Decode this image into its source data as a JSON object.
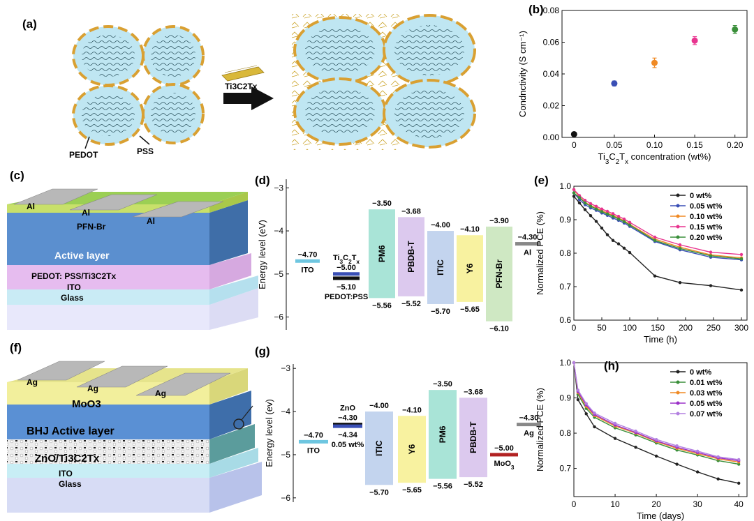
{
  "panel_labels": {
    "a": "(a)",
    "b": "(b)",
    "c": "(c)",
    "d": "(d)",
    "e": "(e)",
    "f": "(f)",
    "g": "(g)",
    "h": "(h)"
  },
  "panel_a": {
    "mxene_label": "Ti3C2Tx",
    "pedot_label": "PEDOT",
    "pss_label": "PSS"
  },
  "panel_c": {
    "layers": [
      "Al",
      "Al",
      "Al",
      "PFN-Br",
      "Active layer",
      "PEDOT: PSS/Ti3C2Tx",
      "ITO",
      "Glass"
    ]
  },
  "panel_f": {
    "layers": [
      "Ag",
      "Ag",
      "Ag",
      "MoO3",
      "BHJ Active layer",
      "ZnO/Ti3C2Tx",
      "ITO",
      "Glass"
    ]
  },
  "chart_data": [
    {
      "id": "b",
      "type": "scatter",
      "xlabel": "Ti3C2Tx concentration (wt%)",
      "ylabel": "Condnctivity (S cm⁻¹)",
      "xlim": [
        -0.015,
        0.215
      ],
      "ylim": [
        0,
        0.08
      ],
      "xticks": [
        "0",
        "0.05",
        "0.10",
        "0.15",
        "0.20"
      ],
      "xtick_values": [
        0,
        0.05,
        0.1,
        0.15,
        0.2
      ],
      "yticks": [
        "0.00",
        "0.02",
        "0.04",
        "0.06",
        "0.08"
      ],
      "ytick_values": [
        0,
        0.02,
        0.04,
        0.06,
        0.08
      ],
      "points": [
        {
          "x": 0,
          "y": 0.002,
          "err": 0.001,
          "color": "#111111"
        },
        {
          "x": 0.05,
          "y": 0.034,
          "err": 0.0015,
          "color": "#3a4fb5"
        },
        {
          "x": 0.1,
          "y": 0.047,
          "err": 0.003,
          "color": "#f08a24"
        },
        {
          "x": 0.15,
          "y": 0.061,
          "err": 0.0025,
          "color": "#e8348f"
        },
        {
          "x": 0.2,
          "y": 0.068,
          "err": 0.0025,
          "color": "#3a8f3a"
        }
      ]
    },
    {
      "id": "d",
      "type": "bar",
      "ylabel": "Energy level (eV)",
      "ylim": [
        -6.3,
        -2.8
      ],
      "yticks": [
        "-3",
        "-4",
        "-5",
        "-6"
      ],
      "ytick_values": [
        -3,
        -4,
        -5,
        -6
      ],
      "levels": [
        {
          "name": "ITO",
          "value": -4.7,
          "label": "−4.70",
          "color": "#6ec6e0"
        },
        {
          "name": "Ti3C2Tx",
          "value": -5.0,
          "label": "−5.00",
          "color": "#3a4fb5"
        },
        {
          "name": "PEDOT:PSS",
          "value": -5.1,
          "label": "−5.10",
          "color": "#111111"
        },
        {
          "name": "Al",
          "value": -4.3,
          "label": "−4.30",
          "color": "#888888"
        }
      ],
      "bands": [
        {
          "name": "PM6",
          "lumo": -3.5,
          "homo": -5.56,
          "lumo_label": "−3.50",
          "homo_label": "−5.56",
          "color": "#a9e4d7"
        },
        {
          "name": "PBDB-T",
          "lumo": -3.68,
          "homo": -5.52,
          "lumo_label": "−3.68",
          "homo_label": "−5.52",
          "color": "#dcc9ee"
        },
        {
          "name": "ITIC",
          "lumo": -4.0,
          "homo": -5.7,
          "lumo_label": "−4.00",
          "homo_label": "−5.70",
          "color": "#c3d4ee"
        },
        {
          "name": "Y6",
          "lumo": -4.1,
          "homo": -5.65,
          "lumo_label": "−4.10",
          "homo_label": "−5.65",
          "color": "#f8f2a0"
        },
        {
          "name": "PFN-Br",
          "lumo": -3.9,
          "homo": -6.1,
          "lumo_label": "−3.90",
          "homo_label": "−6.10",
          "color": "#cfe8c3"
        }
      ]
    },
    {
      "id": "e",
      "type": "line",
      "xlabel": "Time (h)",
      "ylabel": "Normalized PCE (%)",
      "xlim": [
        0,
        310
      ],
      "ylim": [
        0.6,
        1.0
      ],
      "xticks": [
        "0",
        "50",
        "100",
        "150",
        "200",
        "250",
        "300"
      ],
      "xtick_values": [
        0,
        50,
        100,
        150,
        200,
        250,
        300
      ],
      "yticks": [
        "0.6",
        "0.7",
        "0.8",
        "0.9",
        "1.0"
      ],
      "ytick_values": [
        0.6,
        0.7,
        0.8,
        0.9,
        1.0
      ],
      "x": [
        0,
        10,
        20,
        30,
        40,
        50,
        60,
        70,
        80,
        90,
        100,
        145,
        190,
        245,
        300
      ],
      "series": [
        {
          "name": "0 wt%",
          "color": "#222222",
          "values": [
            0.97,
            0.95,
            0.93,
            0.912,
            0.895,
            0.875,
            0.855,
            0.838,
            0.828,
            0.815,
            0.802,
            0.732,
            0.712,
            0.703,
            0.69
          ]
        },
        {
          "name": "0.05 wt%",
          "color": "#3a4fb5",
          "values": [
            0.98,
            0.96,
            0.945,
            0.935,
            0.928,
            0.92,
            0.913,
            0.905,
            0.898,
            0.89,
            0.88,
            0.835,
            0.81,
            0.788,
            0.78
          ]
        },
        {
          "name": "0.10 wt%",
          "color": "#f08a24",
          "values": [
            0.99,
            0.968,
            0.952,
            0.942,
            0.935,
            0.927,
            0.92,
            0.913,
            0.905,
            0.897,
            0.886,
            0.842,
            0.818,
            0.795,
            0.786
          ]
        },
        {
          "name": "0.15 wt%",
          "color": "#e8348f",
          "values": [
            0.99,
            0.972,
            0.958,
            0.948,
            0.94,
            0.932,
            0.925,
            0.918,
            0.91,
            0.902,
            0.892,
            0.848,
            0.825,
            0.803,
            0.796
          ]
        },
        {
          "name": "0.20 wt%",
          "color": "#3a8f3a",
          "values": [
            0.98,
            0.966,
            0.95,
            0.94,
            0.932,
            0.924,
            0.917,
            0.91,
            0.902,
            0.894,
            0.884,
            0.838,
            0.814,
            0.792,
            0.783
          ]
        }
      ]
    },
    {
      "id": "g",
      "type": "bar",
      "ylabel": "Energy level (ev)",
      "ylim": [
        -6.1,
        -2.9
      ],
      "yticks": [
        "-3",
        "-4",
        "-5",
        "-6"
      ],
      "ytick_values": [
        -3,
        -4,
        -5,
        -6
      ],
      "levels": [
        {
          "name": "ITO",
          "value": -4.7,
          "label": "−4.70",
          "color": "#6ec6e0"
        },
        {
          "name": "ZnO",
          "value": -4.3,
          "label": "−4.30",
          "color": "#111111"
        },
        {
          "name": "0.05 wt%",
          "value": -4.34,
          "label": "−4.34",
          "color": "#3a4fb5"
        },
        {
          "name": "MoO3",
          "value": -5.0,
          "label": "−5.00",
          "color": "#b22222"
        },
        {
          "name": "Ag",
          "value": -4.3,
          "label": "−4.30",
          "color": "#888888"
        }
      ],
      "bands": [
        {
          "name": "ITIC",
          "lumo": -4.0,
          "homo": -5.7,
          "lumo_label": "−4.00",
          "homo_label": "−5.70",
          "color": "#c3d4ee"
        },
        {
          "name": "Y6",
          "lumo": -4.1,
          "homo": -5.65,
          "lumo_label": "−4.10",
          "homo_label": "−5.65",
          "color": "#f8f2a0"
        },
        {
          "name": "PM6",
          "lumo": -3.5,
          "homo": -5.56,
          "lumo_label": "−3.50",
          "homo_label": "−5.56",
          "color": "#a9e4d7"
        },
        {
          "name": "PBDB-T",
          "lumo": -3.68,
          "homo": -5.52,
          "lumo_label": "−3.68",
          "homo_label": "−5.52",
          "color": "#dcc9ee"
        }
      ]
    },
    {
      "id": "h",
      "type": "line",
      "xlabel": "Time (days)",
      "ylabel": "Normalized PCE (%)",
      "xlim": [
        0,
        42
      ],
      "ylim": [
        0.62,
        1.0
      ],
      "xticks": [
        "0",
        "10",
        "20",
        "30",
        "40"
      ],
      "xtick_values": [
        0,
        10,
        20,
        30,
        40
      ],
      "yticks": [
        "0.7",
        "0.8",
        "0.9",
        "1.0"
      ],
      "ytick_values": [
        0.7,
        0.8,
        0.9,
        1.0
      ],
      "x": [
        0,
        1,
        3,
        5,
        10,
        15,
        20,
        25,
        30,
        35,
        40
      ],
      "series": [
        {
          "name": "0 wt%",
          "color": "#222222",
          "values": [
            1.0,
            0.895,
            0.855,
            0.818,
            0.785,
            0.76,
            0.735,
            0.712,
            0.69,
            0.67,
            0.658
          ]
        },
        {
          "name": "0.01 wt%",
          "color": "#3a8f3a",
          "values": [
            1.0,
            0.91,
            0.87,
            0.845,
            0.815,
            0.795,
            0.772,
            0.752,
            0.738,
            0.722,
            0.712
          ]
        },
        {
          "name": "0.03 wt%",
          "color": "#f08a24",
          "values": [
            1.0,
            0.915,
            0.876,
            0.85,
            0.82,
            0.8,
            0.776,
            0.757,
            0.742,
            0.727,
            0.718
          ]
        },
        {
          "name": "0.05 wt%",
          "color": "#9b30c8",
          "values": [
            1.0,
            0.918,
            0.88,
            0.853,
            0.823,
            0.802,
            0.778,
            0.76,
            0.745,
            0.73,
            0.722
          ]
        },
        {
          "name": "0.07 wt%",
          "color": "#b380e0",
          "values": [
            1.0,
            0.922,
            0.884,
            0.857,
            0.828,
            0.806,
            0.782,
            0.764,
            0.749,
            0.733,
            0.725
          ]
        }
      ]
    }
  ]
}
